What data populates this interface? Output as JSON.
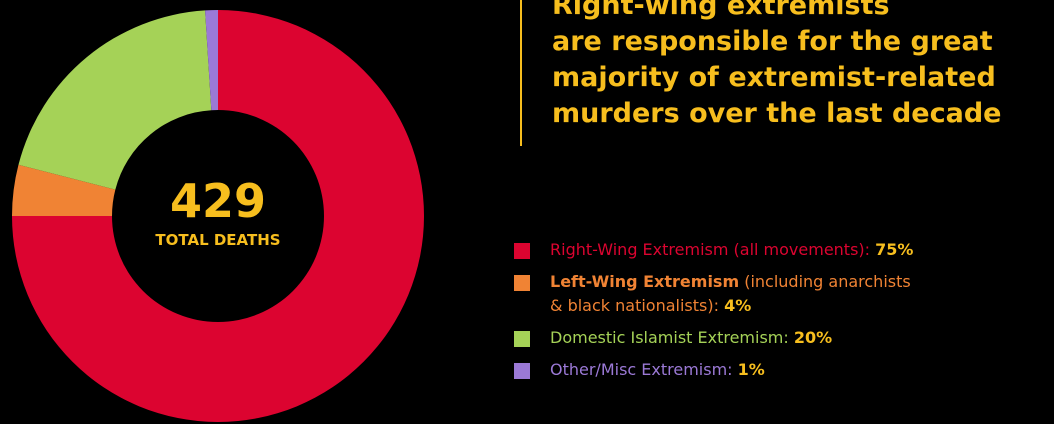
{
  "headline": {
    "lines": [
      "Right-wing extremists",
      "are responsible for the great",
      "majority of extremist-related",
      "murders over the last decade"
    ]
  },
  "center": {
    "total": "429",
    "label": "TOTAL DEATHS"
  },
  "colors": {
    "accent": "#f7be1e",
    "right_wing": "#dc0430",
    "left_wing": "#f08334",
    "islamist": "#a5d257",
    "other": "#9b79d6"
  },
  "legend": [
    {
      "name": "Right-Wing Extremism (all movements):",
      "detail": "",
      "pct": "75%"
    },
    {
      "name": "Left-Wing Extremism",
      "detail": " (including anarchists",
      "detail2": "& black nationalists):",
      "pct": "4%"
    },
    {
      "name": "Domestic Islamist Extremism:",
      "detail": "",
      "pct": "20%"
    },
    {
      "name": "Other/Misc Extremism:",
      "detail": "",
      "pct": "1%"
    }
  ],
  "chart_data": {
    "type": "pie",
    "donut": true,
    "total": 429,
    "slices": [
      {
        "label": "Right-Wing Extremism (all movements)",
        "value": 75,
        "color": "#dc0430"
      },
      {
        "label": "Left-Wing Extremism",
        "value": 4,
        "color": "#f08334"
      },
      {
        "label": "Domestic Islamist Extremism",
        "value": 20,
        "color": "#a5d257"
      },
      {
        "label": "Other/Misc Extremism",
        "value": 1,
        "color": "#9b79d6"
      }
    ]
  }
}
